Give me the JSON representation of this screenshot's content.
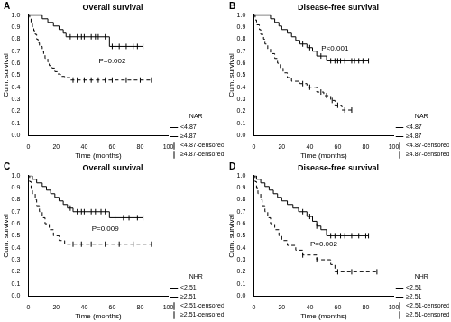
{
  "chart_data": [
    {
      "type": "step",
      "panel_label": "A",
      "title": "Overall survival",
      "x_label": "Time (months)",
      "y_label": "Cum. survival",
      "xlim": [
        0,
        100
      ],
      "xticks": [
        0,
        20,
        40,
        60,
        80,
        100
      ],
      "ylim": [
        0,
        1
      ],
      "yticks": [
        {
          "value": 0,
          "label": "0.0"
        },
        0.1,
        0.2,
        0.3,
        0.4,
        0.5,
        0.6,
        0.7,
        0.8,
        0.9,
        {
          "value": 1,
          "label": "1.0"
        }
      ],
      "grid": false,
      "legend": "right",
      "legend_title": "NAR",
      "annotations": [
        {
          "text": "P=0.002",
          "x": 60,
          "y": 0.62
        }
      ],
      "series": [
        {
          "name": "<4.87",
          "type": "step",
          "color": "#000000",
          "line_style": "solid",
          "x": [
            0,
            10,
            14,
            18,
            22,
            25,
            27,
            58,
            82
          ],
          "values": [
            1,
            0.97,
            0.94,
            0.91,
            0.88,
            0.85,
            0.82,
            0.74,
            0.74
          ]
        },
        {
          "name": "≥4.87",
          "type": "step",
          "color": "#000000",
          "line_style": "dashed",
          "x": [
            0,
            1,
            2,
            3,
            4,
            5,
            6,
            7,
            8,
            10,
            11,
            12,
            14,
            15,
            17,
            19,
            21,
            23,
            26,
            30,
            88
          ],
          "values": [
            1,
            0.97,
            0.93,
            0.9,
            0.87,
            0.84,
            0.8,
            0.77,
            0.74,
            0.7,
            0.67,
            0.64,
            0.61,
            0.58,
            0.56,
            0.53,
            0.51,
            0.49,
            0.48,
            0.46,
            0.46
          ]
        },
        {
          "name": "<4.87-censored",
          "type": "scatter",
          "color": "#000000",
          "marker": "tick",
          "x": [
            30,
            35,
            38,
            40,
            42,
            45,
            48,
            50,
            55,
            60,
            62,
            65,
            70,
            75,
            78,
            82
          ],
          "values": [
            0.82,
            0.82,
            0.82,
            0.82,
            0.82,
            0.82,
            0.82,
            0.82,
            0.82,
            0.74,
            0.74,
            0.74,
            0.74,
            0.74,
            0.74,
            0.74
          ]
        },
        {
          "name": "≥4.87-censored",
          "type": "scatter",
          "color": "#000000",
          "marker": "tick",
          "x": [
            32,
            35,
            40,
            45,
            50,
            55,
            60,
            70,
            80,
            88
          ],
          "values": [
            0.46,
            0.46,
            0.46,
            0.46,
            0.46,
            0.46,
            0.46,
            0.46,
            0.46,
            0.46
          ]
        }
      ]
    },
    {
      "type": "step",
      "panel_label": "B",
      "title": "Disease-free survival",
      "x_label": "Time (months)",
      "y_label": "Cum. survival",
      "xlim": [
        0,
        100
      ],
      "xticks": [
        0,
        20,
        40,
        60,
        80,
        100
      ],
      "ylim": [
        0,
        1
      ],
      "yticks": [
        {
          "value": 0,
          "label": "0.0"
        },
        0.1,
        0.2,
        0.3,
        0.4,
        0.5,
        0.6,
        0.7,
        0.8,
        0.9,
        {
          "value": 1,
          "label": "1.0"
        }
      ],
      "grid": false,
      "legend": "right",
      "legend_title": "NAR",
      "annotations": [
        {
          "text": "P<0.001",
          "x": 58,
          "y": 0.72
        }
      ],
      "series": [
        {
          "name": "<4.87",
          "type": "step",
          "color": "#000000",
          "line_style": "solid",
          "x": [
            0,
            12,
            15,
            18,
            20,
            24,
            27,
            30,
            33,
            38,
            42,
            45,
            52,
            82
          ],
          "values": [
            1,
            0.97,
            0.94,
            0.91,
            0.88,
            0.85,
            0.82,
            0.79,
            0.76,
            0.73,
            0.7,
            0.66,
            0.62,
            0.62
          ]
        },
        {
          "name": "≥4.87",
          "type": "step",
          "color": "#000000",
          "line_style": "dashed",
          "x": [
            0,
            1,
            2,
            4,
            5,
            7,
            8,
            10,
            12,
            15,
            17,
            19,
            21,
            24,
            27,
            33,
            38,
            45,
            50,
            55,
            58,
            63,
            70
          ],
          "values": [
            1,
            0.96,
            0.92,
            0.88,
            0.84,
            0.8,
            0.76,
            0.72,
            0.68,
            0.64,
            0.6,
            0.56,
            0.52,
            0.48,
            0.45,
            0.43,
            0.4,
            0.36,
            0.33,
            0.29,
            0.25,
            0.21,
            0.21
          ]
        },
        {
          "name": "<4.87-censored",
          "type": "scatter",
          "color": "#000000",
          "marker": "tick",
          "x": [
            35,
            40,
            48,
            55,
            58,
            60,
            62,
            65,
            70,
            72,
            75,
            78,
            82
          ],
          "values": [
            0.76,
            0.73,
            0.66,
            0.62,
            0.62,
            0.62,
            0.62,
            0.62,
            0.62,
            0.62,
            0.62,
            0.62,
            0.62
          ]
        },
        {
          "name": "≥4.87-censored",
          "type": "scatter",
          "color": "#000000",
          "marker": "tick",
          "x": [
            35,
            40,
            48,
            52,
            56,
            60,
            65,
            70
          ],
          "values": [
            0.43,
            0.4,
            0.36,
            0.33,
            0.29,
            0.25,
            0.21,
            0.21
          ]
        }
      ]
    },
    {
      "type": "step",
      "panel_label": "C",
      "title": "Overall survival",
      "x_label": "Time (months)",
      "y_label": "Cum. survival",
      "xlim": [
        0,
        100
      ],
      "xticks": [
        0,
        20,
        40,
        60,
        80,
        100
      ],
      "ylim": [
        0,
        1
      ],
      "yticks": [
        {
          "value": 0,
          "label": "0.0"
        },
        0.1,
        0.2,
        0.3,
        0.4,
        0.5,
        0.6,
        0.7,
        0.8,
        0.9,
        {
          "value": 1,
          "label": "1.0"
        }
      ],
      "grid": false,
      "legend": "right",
      "legend_title": "NHR",
      "annotations": [
        {
          "text": "P=0.009",
          "x": 55,
          "y": 0.56
        }
      ],
      "series": [
        {
          "name": "<2.51",
          "type": "step",
          "color": "#000000",
          "line_style": "solid",
          "x": [
            0,
            3,
            6,
            10,
            13,
            16,
            19,
            22,
            25,
            28,
            32,
            58,
            82
          ],
          "values": [
            1,
            0.97,
            0.94,
            0.91,
            0.88,
            0.85,
            0.82,
            0.79,
            0.76,
            0.73,
            0.7,
            0.65,
            0.65
          ]
        },
        {
          "name": "≥2.51",
          "type": "step",
          "color": "#000000",
          "line_style": "dashed",
          "x": [
            0,
            1,
            2,
            3,
            5,
            6,
            8,
            10,
            12,
            15,
            18,
            22,
            26,
            88
          ],
          "values": [
            1,
            0.95,
            0.9,
            0.85,
            0.8,
            0.75,
            0.7,
            0.65,
            0.6,
            0.55,
            0.5,
            0.46,
            0.43,
            0.43
          ]
        },
        {
          "name": "<2.51-censored",
          "type": "scatter",
          "color": "#000000",
          "marker": "tick",
          "x": [
            30,
            35,
            38,
            40,
            42,
            45,
            48,
            52,
            55,
            62,
            68,
            72,
            78,
            82
          ],
          "values": [
            0.73,
            0.7,
            0.7,
            0.7,
            0.7,
            0.7,
            0.7,
            0.7,
            0.7,
            0.65,
            0.65,
            0.65,
            0.65,
            0.65
          ]
        },
        {
          "name": "≥2.51-censored",
          "type": "scatter",
          "color": "#000000",
          "marker": "tick",
          "x": [
            32,
            38,
            45,
            55,
            65,
            75,
            88
          ],
          "values": [
            0.43,
            0.43,
            0.43,
            0.43,
            0.43,
            0.43,
            0.43
          ]
        }
      ]
    },
    {
      "type": "step",
      "panel_label": "D",
      "title": "Disease-free survival",
      "x_label": "Time (months)",
      "y_label": "Cum. survival",
      "xlim": [
        0,
        100
      ],
      "xticks": [
        0,
        20,
        40,
        60,
        80,
        100
      ],
      "ylim": [
        0,
        1
      ],
      "yticks": [
        {
          "value": 0,
          "label": "0.0"
        },
        0.1,
        0.2,
        0.3,
        0.4,
        0.5,
        0.6,
        0.7,
        0.8,
        0.9,
        {
          "value": 1,
          "label": "1.0"
        }
      ],
      "grid": false,
      "legend": "right",
      "legend_title": "NHR",
      "annotations": [
        {
          "text": "P=0.002",
          "x": 50,
          "y": 0.43
        }
      ],
      "series": [
        {
          "name": "<2.51",
          "type": "step",
          "color": "#000000",
          "line_style": "solid",
          "x": [
            0,
            2,
            5,
            8,
            11,
            14,
            17,
            20,
            24,
            28,
            32,
            38,
            42,
            45,
            48,
            52,
            82
          ],
          "values": [
            1,
            0.97,
            0.94,
            0.91,
            0.88,
            0.85,
            0.82,
            0.79,
            0.76,
            0.73,
            0.7,
            0.66,
            0.62,
            0.58,
            0.55,
            0.5,
            0.5
          ]
        },
        {
          "name": "≥2.51",
          "type": "step",
          "color": "#000000",
          "line_style": "dashed",
          "x": [
            0,
            1,
            2,
            3,
            5,
            6,
            8,
            10,
            12,
            15,
            18,
            20,
            24,
            30,
            35,
            45,
            55,
            58,
            88
          ],
          "values": [
            1,
            0.95,
            0.9,
            0.85,
            0.8,
            0.75,
            0.7,
            0.65,
            0.6,
            0.55,
            0.5,
            0.46,
            0.42,
            0.38,
            0.34,
            0.3,
            0.26,
            0.2,
            0.2
          ]
        },
        {
          "name": "<2.51-censored",
          "type": "scatter",
          "color": "#000000",
          "marker": "tick",
          "x": [
            35,
            40,
            45,
            55,
            58,
            62,
            65,
            70,
            75,
            80,
            82
          ],
          "values": [
            0.7,
            0.66,
            0.58,
            0.5,
            0.5,
            0.5,
            0.5,
            0.5,
            0.5,
            0.5,
            0.5
          ]
        },
        {
          "name": "≥2.51-censored",
          "type": "scatter",
          "color": "#000000",
          "marker": "tick",
          "x": [
            35,
            45,
            60,
            70,
            88
          ],
          "values": [
            0.34,
            0.3,
            0.2,
            0.2,
            0.2
          ]
        }
      ]
    }
  ]
}
